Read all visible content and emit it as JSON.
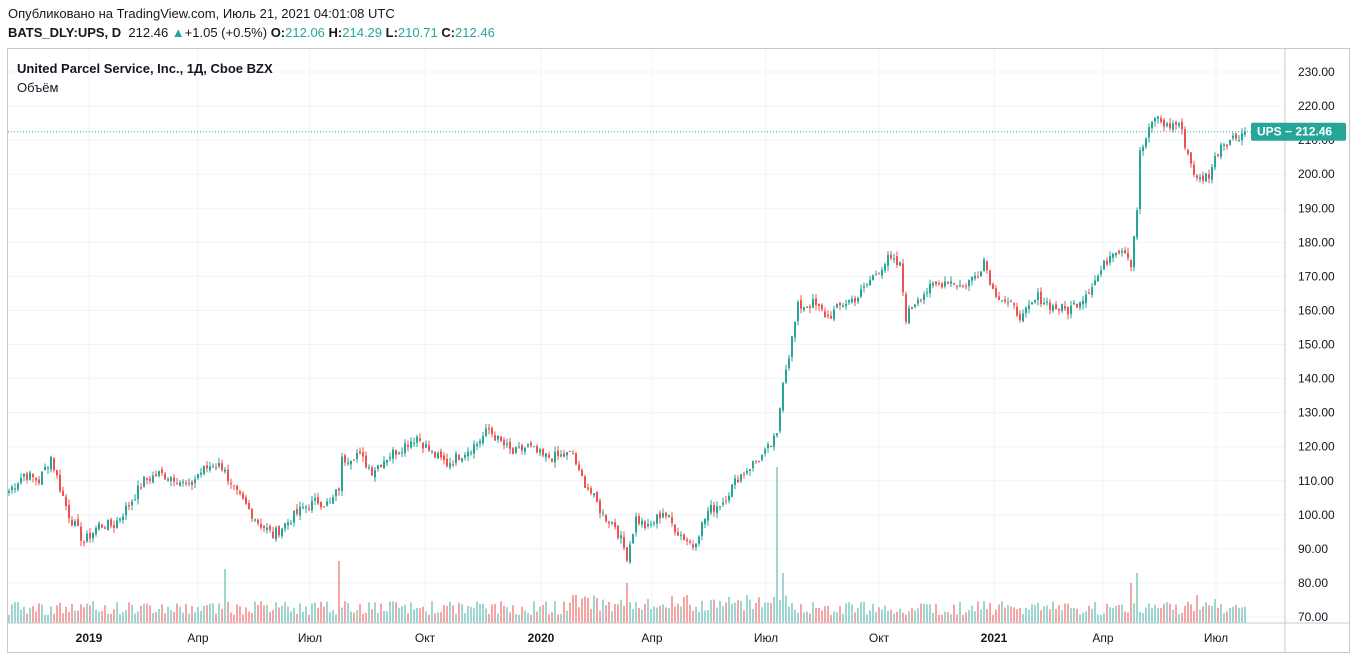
{
  "header": {
    "published_line": "Опубликовано на TradingView.com, Июль 21, 2021 04:01:08 UTC",
    "symbol": "BATS_DLY:UPS, D",
    "last": "212.46",
    "change": "+1.05 (+0.5%)",
    "o_label": "O:",
    "o_value": "212.06",
    "h_label": "H:",
    "h_value": "214.29",
    "l_label": "L:",
    "l_value": "210.71",
    "c_label": "C:",
    "c_value": "212.46"
  },
  "legend": {
    "title": "United Parcel Service, Inc., 1Д, Cboe BZX",
    "indicator": "Объём"
  },
  "price_label": "UPS",
  "price_value": "212.46",
  "colors": {
    "up": "#26a69a",
    "down": "#ef5350",
    "vol_up": "#9fd6cf",
    "vol_down": "#f5a5a3",
    "grid": "#f0f3fa"
  },
  "chart_data": {
    "type": "candlestick",
    "symbol": "UPS",
    "interval": "1D",
    "ylim": [
      68,
      232
    ],
    "y_ticks": [
      "230.00",
      "220.00",
      "210.00",
      "200.00",
      "190.00",
      "180.00",
      "170.00",
      "160.00",
      "150.00",
      "140.00",
      "130.00",
      "120.00",
      "110.00",
      "100.00",
      "90.00",
      "80.00",
      "70.00"
    ],
    "x_ticks": [
      {
        "label": "2019",
        "bold": true
      },
      {
        "label": "Апр",
        "bold": false
      },
      {
        "label": "Июл",
        "bold": false
      },
      {
        "label": "Окт",
        "bold": false
      },
      {
        "label": "2020",
        "bold": true
      },
      {
        "label": "Апр",
        "bold": false
      },
      {
        "label": "Июл",
        "bold": false
      },
      {
        "label": "Окт",
        "bold": false
      },
      {
        "label": "2021",
        "bold": true
      },
      {
        "label": "Апр",
        "bold": false
      },
      {
        "label": "Июл",
        "bold": false
      }
    ],
    "last_price": 212.46,
    "price_path": [
      [
        0,
        107
      ],
      [
        5,
        112
      ],
      [
        10,
        110
      ],
      [
        14,
        117
      ],
      [
        17,
        108
      ],
      [
        20,
        100
      ],
      [
        25,
        92
      ],
      [
        30,
        97
      ],
      [
        35,
        97
      ],
      [
        40,
        103
      ],
      [
        45,
        110
      ],
      [
        50,
        112
      ],
      [
        55,
        111
      ],
      [
        60,
        108
      ],
      [
        63,
        112
      ],
      [
        68,
        115
      ],
      [
        72,
        114
      ],
      [
        73,
        109
      ],
      [
        78,
        104
      ],
      [
        83,
        98
      ],
      [
        88,
        94
      ],
      [
        93,
        98
      ],
      [
        98,
        102
      ],
      [
        103,
        104
      ],
      [
        107,
        103
      ],
      [
        110,
        108
      ],
      [
        111,
        116
      ],
      [
        116,
        118
      ],
      [
        121,
        113
      ],
      [
        126,
        117
      ],
      [
        131,
        120
      ],
      [
        136,
        123
      ],
      [
        141,
        118
      ],
      [
        146,
        115
      ],
      [
        151,
        118
      ],
      [
        156,
        121
      ],
      [
        158,
        123
      ],
      [
        160,
        125
      ],
      [
        163,
        122
      ],
      [
        168,
        118
      ],
      [
        173,
        120
      ],
      [
        178,
        117
      ],
      [
        183,
        117
      ],
      [
        188,
        118
      ],
      [
        190,
        112
      ],
      [
        193,
        108
      ],
      [
        198,
        100
      ],
      [
        202,
        97
      ],
      [
        206,
        88
      ],
      [
        209,
        99
      ],
      [
        213,
        96
      ],
      [
        218,
        101
      ],
      [
        223,
        95
      ],
      [
        228,
        91
      ],
      [
        233,
        101
      ],
      [
        238,
        104
      ],
      [
        243,
        111
      ],
      [
        248,
        115
      ],
      [
        252,
        118
      ],
      [
        256,
        123
      ],
      [
        258,
        140
      ],
      [
        260,
        147
      ],
      [
        263,
        161
      ],
      [
        268,
        162
      ],
      [
        273,
        158
      ],
      [
        278,
        162
      ],
      [
        283,
        164
      ],
      [
        288,
        170
      ],
      [
        293,
        175
      ],
      [
        297,
        173
      ],
      [
        299,
        158
      ],
      [
        303,
        164
      ],
      [
        308,
        167
      ],
      [
        313,
        169
      ],
      [
        318,
        167
      ],
      [
        323,
        171
      ],
      [
        325,
        175
      ],
      [
        328,
        166
      ],
      [
        333,
        162
      ],
      [
        338,
        158
      ],
      [
        343,
        164
      ],
      [
        348,
        161
      ],
      [
        353,
        160
      ],
      [
        358,
        164
      ],
      [
        363,
        170
      ],
      [
        368,
        178
      ],
      [
        372,
        178
      ],
      [
        374,
        174
      ],
      [
        376,
        190
      ],
      [
        377,
        206
      ],
      [
        382,
        217
      ],
      [
        386,
        214
      ],
      [
        390,
        215
      ],
      [
        393,
        206
      ],
      [
        396,
        198
      ],
      [
        400,
        200
      ],
      [
        404,
        209
      ],
      [
        409,
        211
      ],
      [
        412,
        212.46
      ]
    ],
    "volume_spikes": [
      [
        72,
        27
      ],
      [
        110,
        31
      ],
      [
        188,
        14
      ],
      [
        206,
        20
      ],
      [
        226,
        14
      ],
      [
        256,
        78
      ],
      [
        258,
        25
      ],
      [
        374,
        20
      ],
      [
        376,
        25
      ],
      [
        396,
        14
      ],
      [
        402,
        12
      ]
    ]
  }
}
